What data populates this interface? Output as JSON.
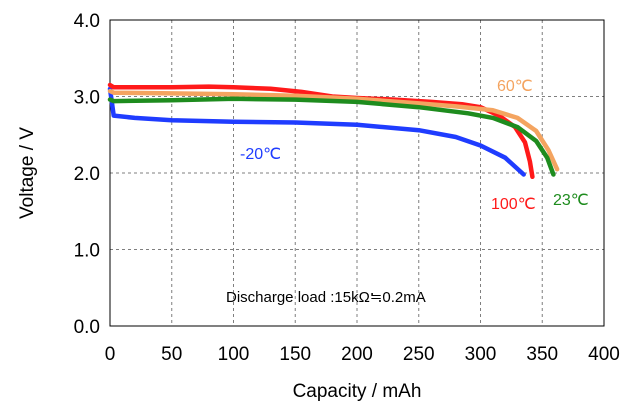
{
  "chart_data": {
    "type": "line",
    "xlabel": "Capacity / mAh",
    "ylabel": "Voltage / V",
    "xlim": [
      0,
      400
    ],
    "ylim": [
      0.0,
      4.0
    ],
    "x_ticks": [
      "0",
      "50",
      "100",
      "150",
      "200",
      "250",
      "300",
      "350",
      "400"
    ],
    "y_ticks": [
      "0.0",
      "1.0",
      "2.0",
      "3.0",
      "4.0"
    ],
    "grid": true,
    "annotation": "Discharge load :15kΩ≒0.2mA",
    "series": [
      {
        "name": "-20℃",
        "color": "#1f3cff",
        "points": [
          [
            0,
            3.1
          ],
          [
            3,
            2.75
          ],
          [
            20,
            2.72
          ],
          [
            50,
            2.69
          ],
          [
            100,
            2.67
          ],
          [
            150,
            2.66
          ],
          [
            200,
            2.63
          ],
          [
            250,
            2.56
          ],
          [
            280,
            2.47
          ],
          [
            300,
            2.36
          ],
          [
            320,
            2.2
          ],
          [
            335,
            1.98
          ]
        ]
      },
      {
        "name": "100℃",
        "color": "#ff1a1a",
        "points": [
          [
            0,
            3.15
          ],
          [
            3,
            3.12
          ],
          [
            20,
            3.12
          ],
          [
            50,
            3.12
          ],
          [
            80,
            3.13
          ],
          [
            100,
            3.12
          ],
          [
            130,
            3.1
          ],
          [
            155,
            3.06
          ],
          [
            180,
            3.0
          ],
          [
            200,
            2.98
          ],
          [
            230,
            2.96
          ],
          [
            260,
            2.93
          ],
          [
            285,
            2.9
          ],
          [
            300,
            2.86
          ],
          [
            315,
            2.75
          ],
          [
            328,
            2.6
          ],
          [
            336,
            2.4
          ],
          [
            340,
            2.15
          ],
          [
            342,
            1.95
          ]
        ]
      },
      {
        "name": "60℃",
        "color": "#f4a460",
        "points": [
          [
            0,
            3.07
          ],
          [
            3,
            3.05
          ],
          [
            50,
            3.04
          ],
          [
            100,
            3.03
          ],
          [
            150,
            3.01
          ],
          [
            200,
            2.97
          ],
          [
            250,
            2.91
          ],
          [
            280,
            2.87
          ],
          [
            310,
            2.82
          ],
          [
            330,
            2.72
          ],
          [
            345,
            2.55
          ],
          [
            355,
            2.3
          ],
          [
            362,
            2.05
          ]
        ]
      },
      {
        "name": "23℃",
        "color": "#1e8c1e",
        "points": [
          [
            0,
            2.96
          ],
          [
            3,
            2.94
          ],
          [
            50,
            2.95
          ],
          [
            100,
            2.97
          ],
          [
            150,
            2.96
          ],
          [
            200,
            2.93
          ],
          [
            250,
            2.86
          ],
          [
            290,
            2.78
          ],
          [
            310,
            2.72
          ],
          [
            330,
            2.6
          ],
          [
            345,
            2.42
          ],
          [
            354,
            2.2
          ],
          [
            359,
            1.98
          ]
        ]
      }
    ]
  }
}
